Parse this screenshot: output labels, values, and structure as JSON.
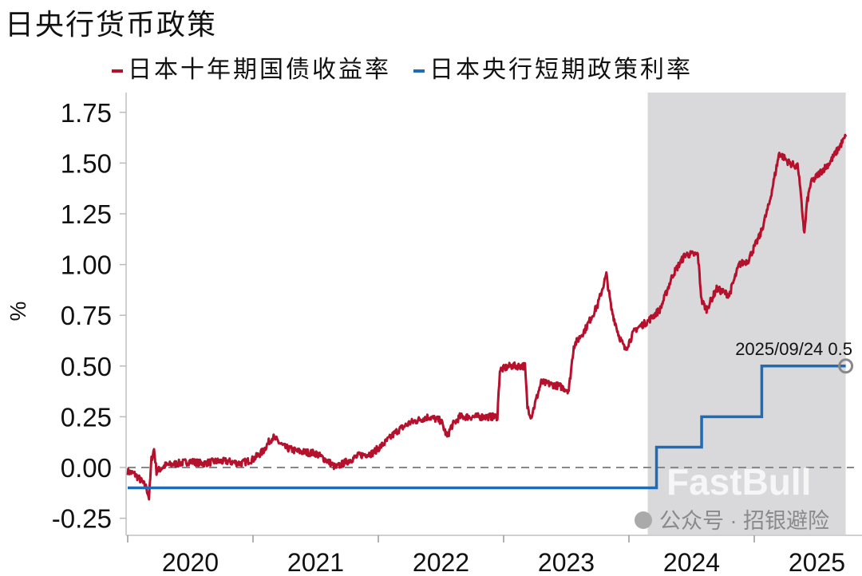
{
  "chart_data": {
    "type": "line",
    "title": "日央行货币政策",
    "xlabel": "",
    "ylabel": "%",
    "ylim": [
      -0.35,
      1.85
    ],
    "xlim": [
      2020.0,
      2025.75
    ],
    "yticks": [
      "1.75",
      "1.50",
      "1.25",
      "1.00",
      "0.75",
      "0.50",
      "0.25",
      "0.00",
      "-0.25"
    ],
    "ytick_values": [
      1.75,
      1.5,
      1.25,
      1.0,
      0.75,
      0.5,
      0.25,
      0.0,
      -0.25
    ],
    "xtick_labels": [
      "2020",
      "2021",
      "2022",
      "2023",
      "2024",
      "2025"
    ],
    "reference_line": 0.0,
    "shaded_range": [
      2024.15,
      2025.73
    ],
    "legend_position": "top",
    "series": [
      {
        "name": "日本十年期国债收益率",
        "color": "#b5102c",
        "type": "line",
        "x": [
          2020.0,
          2020.05,
          2020.1,
          2020.15,
          2020.17,
          2020.19,
          2020.21,
          2020.23,
          2020.3,
          2020.4,
          2020.5,
          2020.6,
          2020.7,
          2020.8,
          2020.9,
          2021.0,
          2021.08,
          2021.13,
          2021.16,
          2021.25,
          2021.35,
          2021.5,
          2021.6,
          2021.66,
          2021.75,
          2021.85,
          2021.95,
          2022.05,
          2022.15,
          2022.25,
          2022.4,
          2022.5,
          2022.55,
          2022.58,
          2022.65,
          2022.8,
          2022.95,
          2022.97,
          2023.05,
          2023.17,
          2023.19,
          2023.22,
          2023.3,
          2023.45,
          2023.52,
          2023.56,
          2023.65,
          2023.75,
          2023.82,
          2023.86,
          2023.92,
          2023.97,
          2024.05,
          2024.15,
          2024.25,
          2024.35,
          2024.45,
          2024.55,
          2024.58,
          2024.62,
          2024.7,
          2024.8,
          2024.88,
          2024.95,
          2025.05,
          2025.12,
          2025.2,
          2025.28,
          2025.35,
          2025.4,
          2025.42,
          2025.45,
          2025.52,
          2025.6,
          2025.68,
          2025.73
        ],
        "y": [
          -0.02,
          -0.03,
          -0.06,
          -0.1,
          -0.15,
          0.04,
          0.09,
          -0.02,
          0.01,
          0.02,
          0.03,
          0.02,
          0.03,
          0.03,
          0.02,
          0.04,
          0.08,
          0.13,
          0.15,
          0.1,
          0.08,
          0.07,
          0.03,
          0.0,
          0.03,
          0.06,
          0.07,
          0.12,
          0.18,
          0.22,
          0.25,
          0.23,
          0.15,
          0.2,
          0.25,
          0.25,
          0.25,
          0.48,
          0.5,
          0.5,
          0.3,
          0.25,
          0.42,
          0.4,
          0.38,
          0.6,
          0.68,
          0.8,
          0.95,
          0.78,
          0.65,
          0.58,
          0.68,
          0.72,
          0.78,
          0.95,
          1.05,
          1.05,
          0.82,
          0.78,
          0.88,
          0.85,
          1.0,
          1.02,
          1.15,
          1.3,
          1.55,
          1.5,
          1.48,
          1.15,
          1.3,
          1.4,
          1.45,
          1.5,
          1.58,
          1.63
        ]
      },
      {
        "name": "日本央行短期政策利率",
        "color": "#1f6bb5",
        "type": "step",
        "x": [
          2020.0,
          2024.22,
          2024.58,
          2025.06,
          2025.73
        ],
        "y": [
          -0.1,
          0.1,
          0.25,
          0.5,
          0.5
        ]
      }
    ],
    "annotation": {
      "text": "2025/09/24  0.5",
      "x": 2025.73,
      "y": 0.5
    }
  },
  "watermark": {
    "brand": "FastBull",
    "account": "公众号 · 招银避险"
  }
}
